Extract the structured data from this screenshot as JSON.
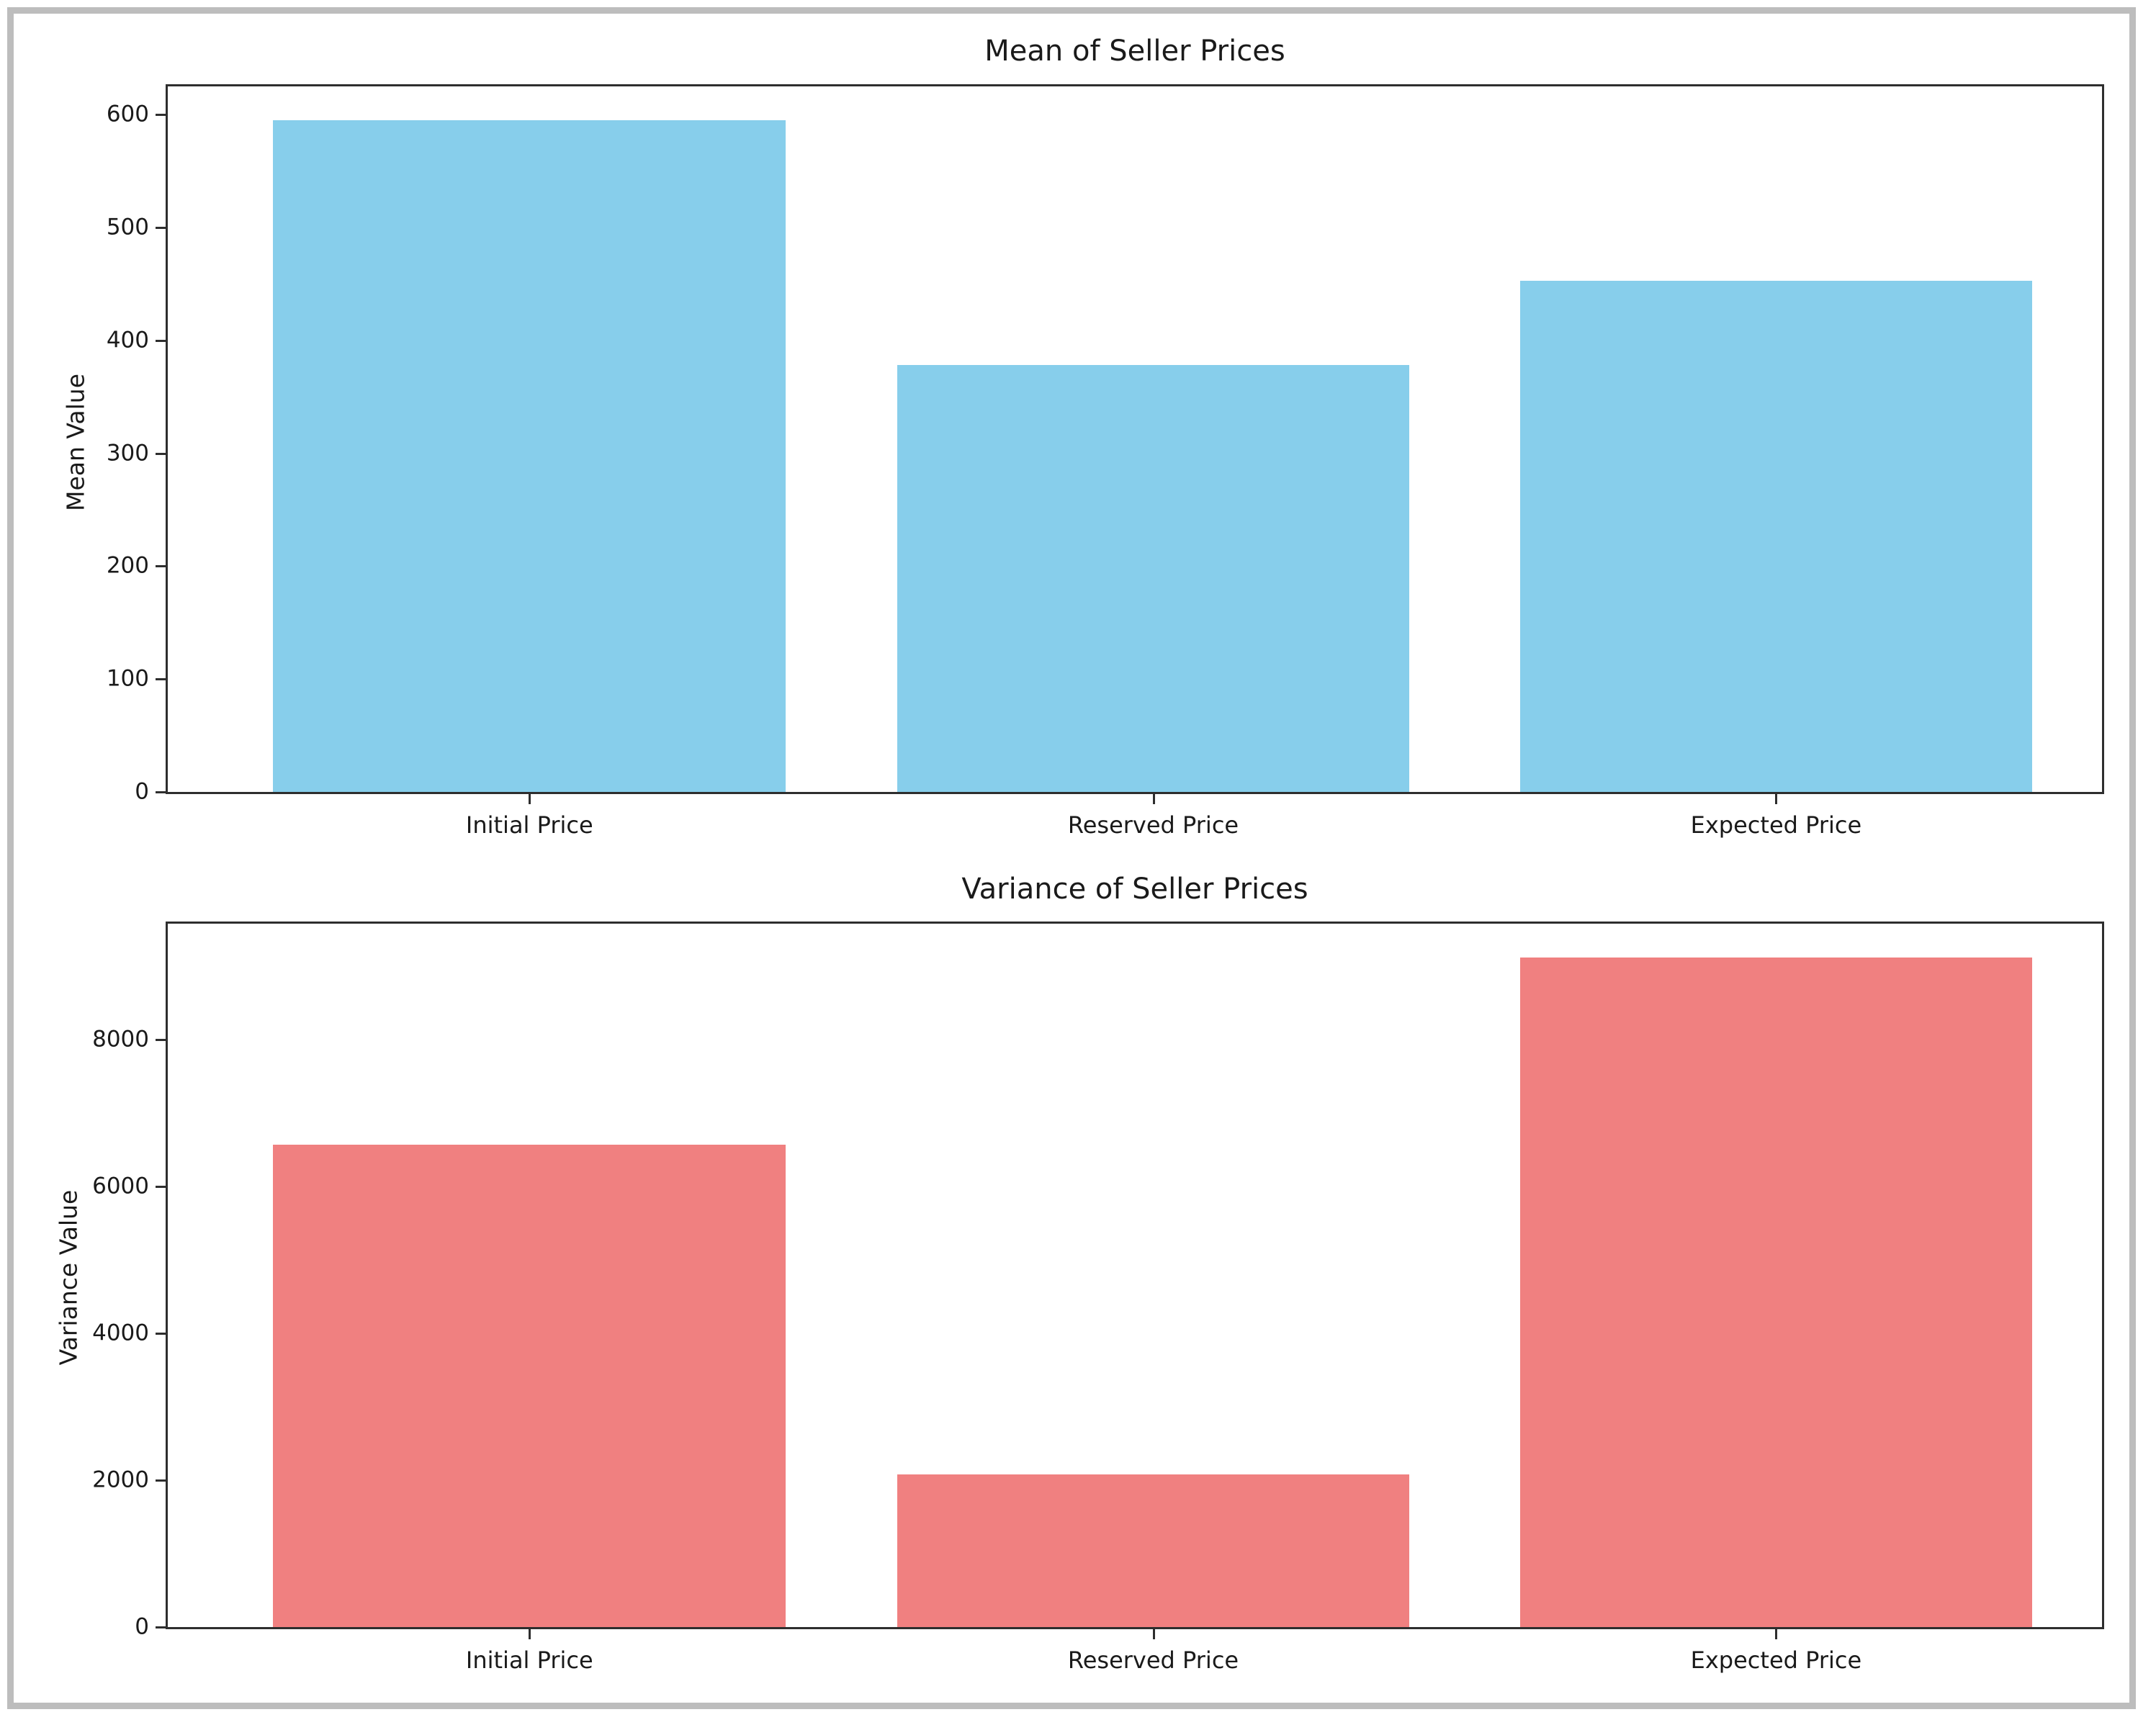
{
  "figure": {
    "background": "#ffffff",
    "border_color": "#bdbdbd"
  },
  "chart_data": [
    {
      "type": "bar",
      "title": "Mean of Seller Prices",
      "ylabel": "Mean Value",
      "xlabel": "",
      "categories": [
        "Initial Price",
        "Reserved Price",
        "Expected Price"
      ],
      "values": [
        595,
        378,
        453
      ],
      "yticks": [
        0,
        100,
        200,
        300,
        400,
        500,
        600
      ],
      "ylim": [
        0,
        625
      ],
      "bar_color": "#87CEEB",
      "grid": false,
      "legend": "none"
    },
    {
      "type": "bar",
      "title": "Variance of Seller Prices",
      "ylabel": "Variance Value",
      "xlabel": "",
      "categories": [
        "Initial Price",
        "Reserved Price",
        "Expected Price"
      ],
      "values": [
        6570,
        2080,
        9120
      ],
      "yticks": [
        0,
        2000,
        4000,
        6000,
        8000
      ],
      "ylim": [
        0,
        9580
      ],
      "bar_color": "#F08080",
      "grid": false,
      "legend": "none"
    }
  ]
}
